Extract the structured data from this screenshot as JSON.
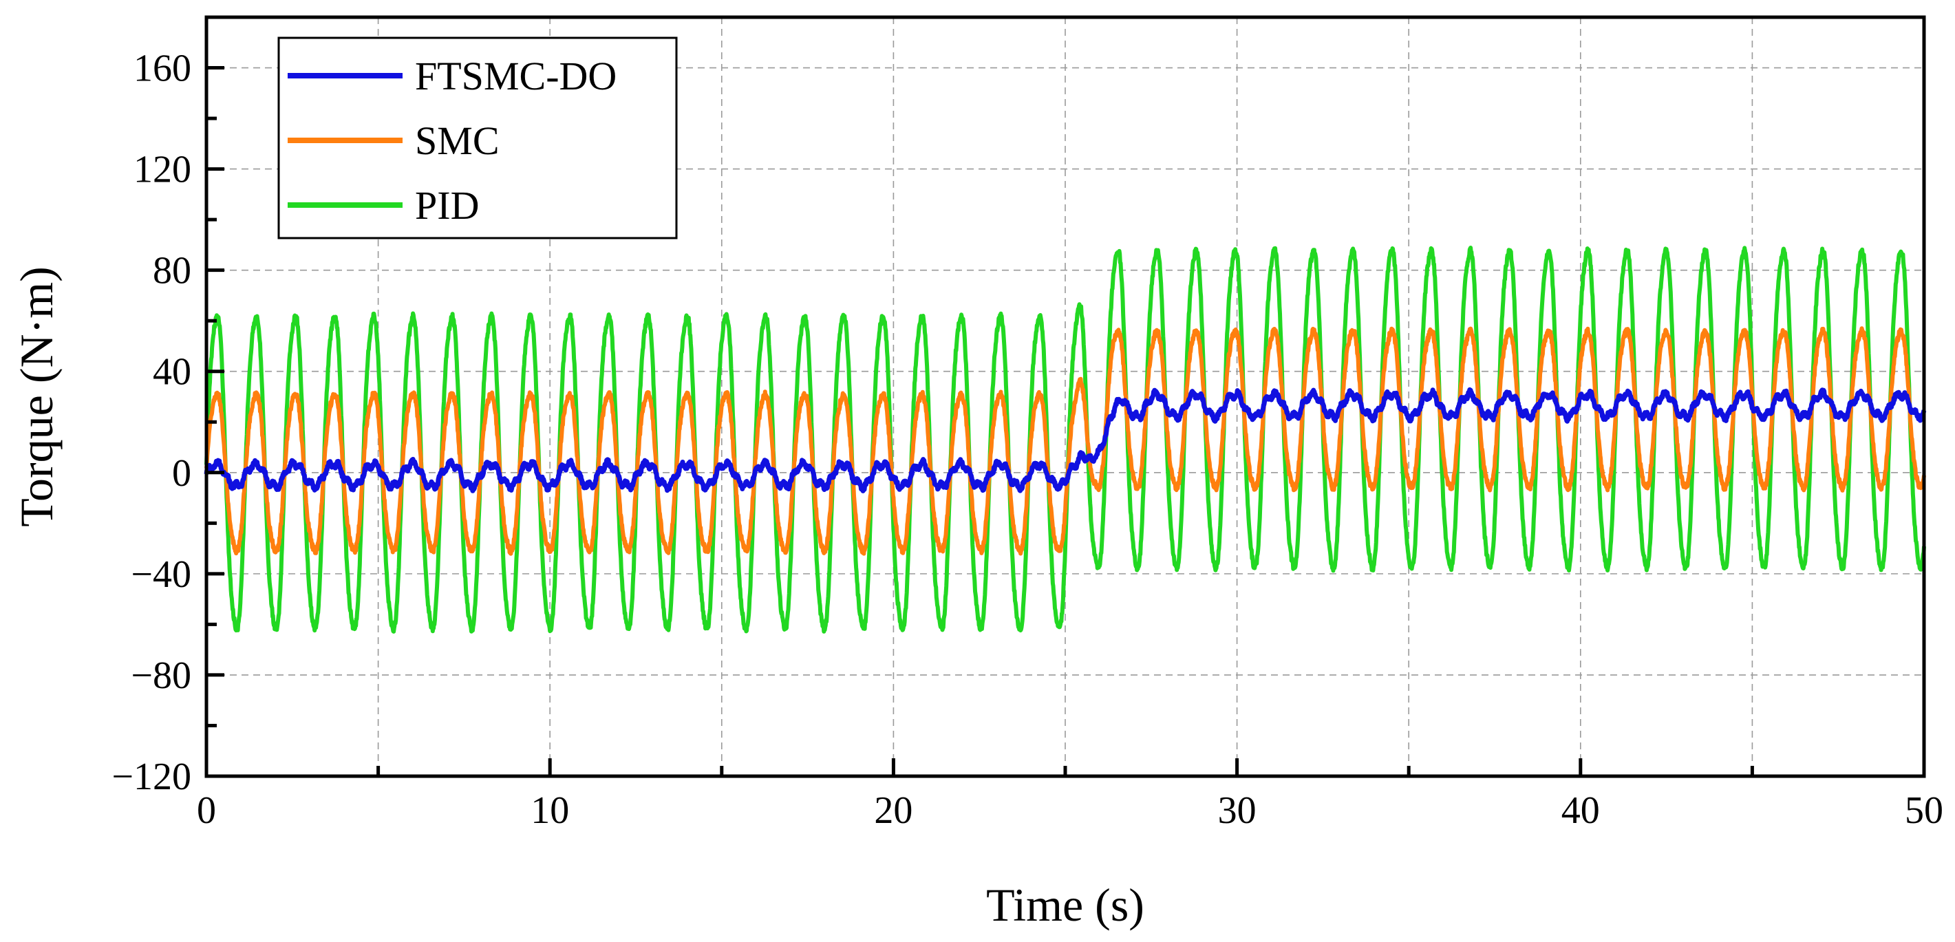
{
  "chart_data": {
    "type": "line",
    "title": "",
    "xlabel": "Time (s)",
    "ylabel": "Torque (N·m)",
    "xlim": [
      0,
      50
    ],
    "ylim": [
      -120,
      180
    ],
    "xticks": [
      0,
      10,
      20,
      30,
      40,
      50
    ],
    "xtick_labels": [
      "0",
      "10",
      "20",
      "30",
      "40",
      "50"
    ],
    "xminor": [
      5,
      15,
      25,
      35,
      45
    ],
    "yticks": [
      -120,
      -80,
      -40,
      0,
      40,
      80,
      120,
      160
    ],
    "ytick_labels": [
      "−120",
      "−80",
      "−40",
      "0",
      "40",
      "80",
      "120",
      "160"
    ],
    "yminor": [
      -100,
      -60,
      -20,
      20,
      60,
      100,
      140
    ],
    "grid": true,
    "legend_position": "top-left",
    "series": [
      {
        "name": "FTSMC-DO",
        "color": "#1010e0",
        "segments": [
          {
            "t_start": 0,
            "t_end": 25.3,
            "offset": -1,
            "amplitude": 4.5,
            "period": 1.14,
            "noise": 1.6
          },
          {
            "t_start": 25.3,
            "t_end": 50,
            "offset": 26.5,
            "amplitude": 4.5,
            "period": 1.14,
            "noise": 1.6
          }
        ],
        "transition": {
          "time": 25.3,
          "rise_time": 1.4
        }
      },
      {
        "name": "SMC",
        "color": "#ff7f0e",
        "segments": [
          {
            "t_start": 0,
            "t_end": 25.3,
            "offset": 0,
            "amplitude": 32,
            "period": 1.14,
            "noise": 2.5
          },
          {
            "t_start": 25.3,
            "t_end": 50,
            "offset": 25,
            "amplitude": 32,
            "period": 1.14,
            "noise": 2.5
          }
        ],
        "transition": {
          "time": 25.3,
          "rise_time": 0.6
        }
      },
      {
        "name": "PID",
        "color": "#22d822",
        "segments": [
          {
            "t_start": 0,
            "t_end": 25.3,
            "offset": 0,
            "amplitude": 64,
            "period": 1.14,
            "noise": 2.5
          },
          {
            "t_start": 25.3,
            "t_end": 50,
            "offset": 25,
            "amplitude": 65,
            "period": 1.14,
            "noise": 2.5
          }
        ],
        "transition": {
          "time": 25.3,
          "rise_time": 0.6
        }
      }
    ]
  }
}
